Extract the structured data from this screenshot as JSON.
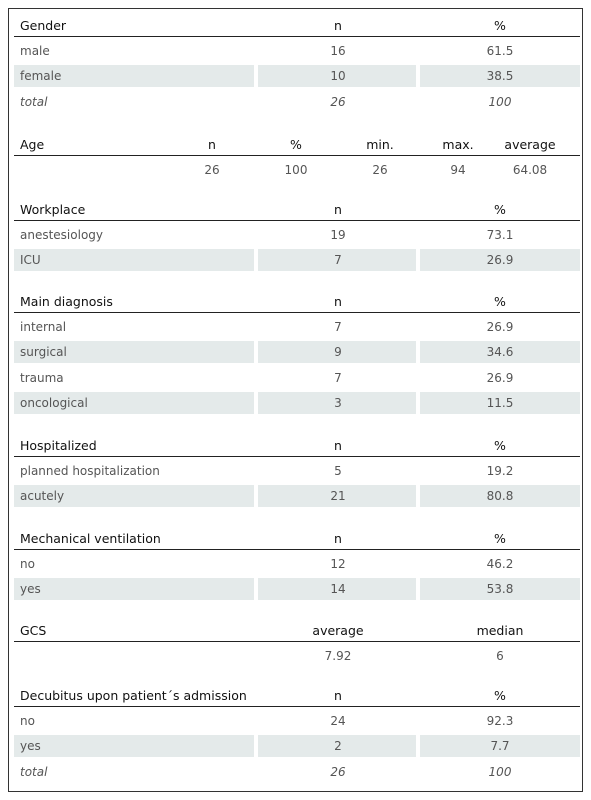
{
  "sections": [
    {
      "header": [
        "Gender",
        "n",
        "%"
      ],
      "rows": [
        [
          "male",
          "16",
          "61.5"
        ],
        [
          "female",
          "10",
          "38.5"
        ]
      ],
      "total": [
        "total",
        "26",
        "100"
      ]
    },
    {
      "header": [
        "Age",
        "n",
        "%",
        "min.",
        "max.",
        "average"
      ],
      "rows": [
        [
          null,
          "26",
          "100",
          "26",
          "94",
          "64.08"
        ]
      ]
    },
    {
      "header": [
        "Workplace",
        "n",
        "%"
      ],
      "rows": [
        [
          "anestesiology",
          "19",
          "73.1"
        ],
        [
          "ICU",
          "7",
          "26.9"
        ]
      ]
    },
    {
      "header": [
        "Main diagnosis",
        "n",
        "%"
      ],
      "rows": [
        [
          "internal",
          "7",
          "26.9"
        ],
        [
          "surgical",
          "9",
          "34.6"
        ],
        [
          "trauma",
          "7",
          "26.9"
        ],
        [
          "oncological",
          "3",
          "11.5"
        ]
      ]
    },
    {
      "header": [
        "Hospitalized",
        "n",
        "%"
      ],
      "rows": [
        [
          "planned hospitalization",
          "5",
          "19.2"
        ],
        [
          "acutely",
          "21",
          "80.8"
        ]
      ]
    },
    {
      "header": [
        "Mechanical ventilation",
        "n",
        "%"
      ],
      "rows": [
        [
          "no",
          "12",
          "46.2"
        ],
        [
          "yes",
          "14",
          "53.8"
        ]
      ]
    },
    {
      "header": [
        "GCS",
        "average",
        "median"
      ],
      "rows": [
        [
          null,
          "7.92",
          "6"
        ]
      ]
    },
    {
      "header": [
        "Decubitus upon patient´s admission",
        "n",
        "%"
      ],
      "rows": [
        [
          "no",
          "24",
          "92.3"
        ],
        [
          "yes",
          "2",
          "7.7"
        ]
      ],
      "total": [
        "total",
        "26",
        "100"
      ]
    }
  ]
}
